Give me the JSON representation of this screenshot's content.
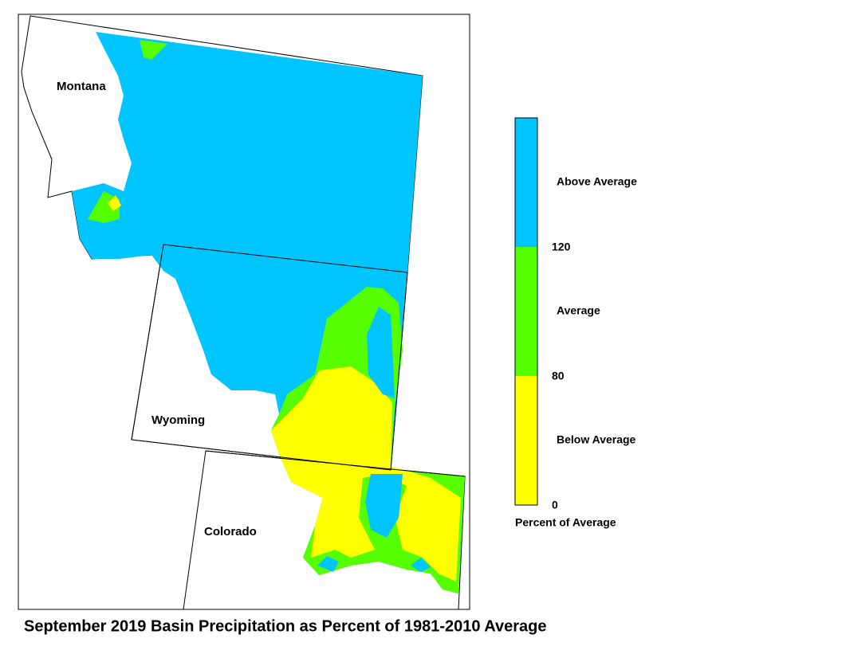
{
  "title": "September 2019 Basin Precipitation as Percent of 1981-2010 Average",
  "states": [
    "Montana",
    "Wyoming",
    "Colorado"
  ],
  "legend": {
    "title": "Percent of Average",
    "classes": [
      {
        "label": "Above Average",
        "color": "#00c5ff"
      },
      {
        "label": "Average",
        "color": "#55ff00"
      },
      {
        "label": "Below Average",
        "color": "#ffff00"
      }
    ],
    "ticks": [
      120,
      80,
      0
    ]
  }
}
